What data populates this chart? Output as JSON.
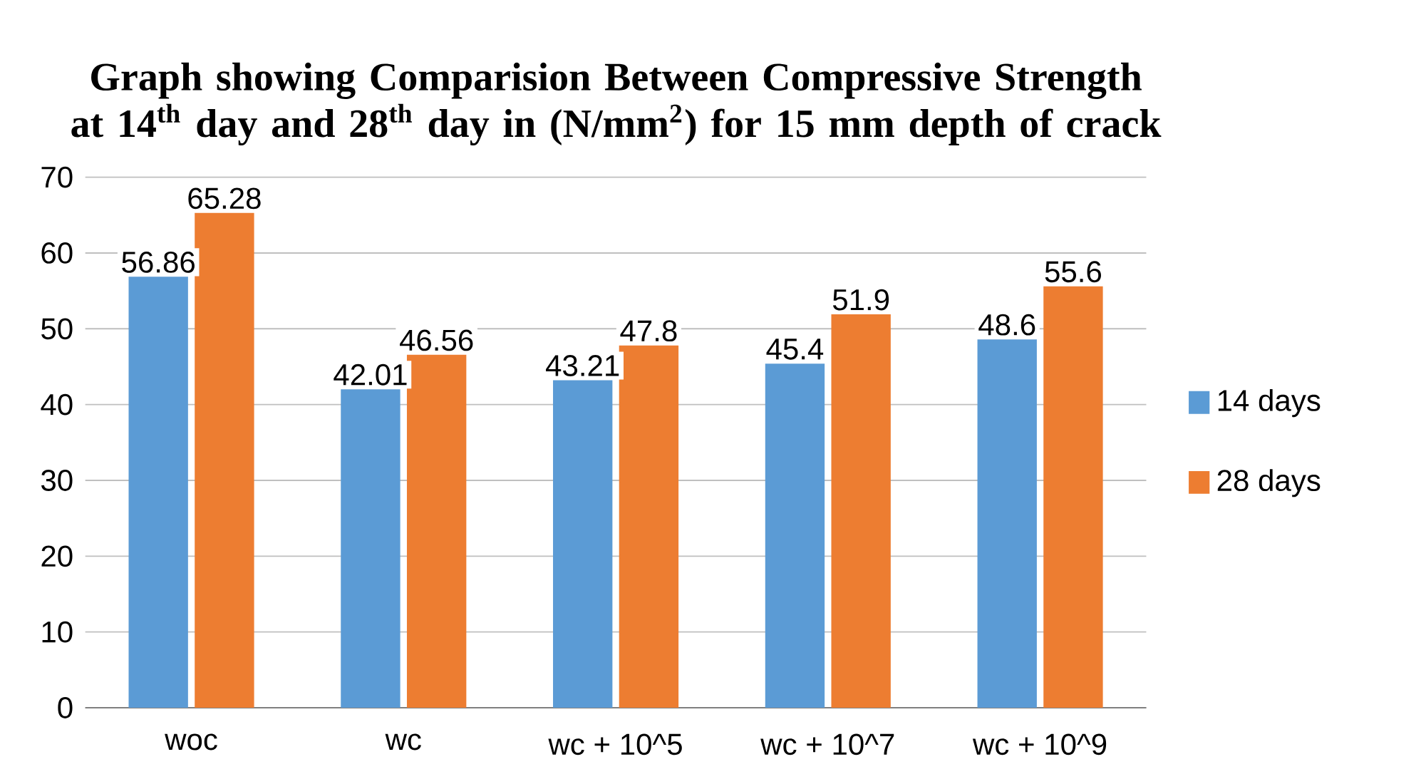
{
  "chart_data": {
    "type": "bar",
    "title": "Graph showing Comparision Between Compressive Strength at 14$^{th}$ day and 28$^{th}$ day in (N/mm$^{2}$)  for 15 mm depth of crack",
    "categories": [
      "woc",
      "wc",
      "wc + 10^5",
      "wc + 10^7",
      "wc + 10^9"
    ],
    "series": [
      {
        "name": "14 days",
        "color": "#5b9bd5",
        "values": [
          56.86,
          42.01,
          43.21,
          45.4,
          48.6
        ]
      },
      {
        "name": "28 days",
        "color": "#ed7d31",
        "values": [
          65.28,
          46.56,
          47.8,
          51.9,
          55.6
        ]
      }
    ],
    "ylim": [
      0,
      70
    ],
    "yticks": [
      0,
      10,
      20,
      30,
      40,
      50,
      60,
      70
    ],
    "grid": "y",
    "legend": "right",
    "data_labels": true
  }
}
